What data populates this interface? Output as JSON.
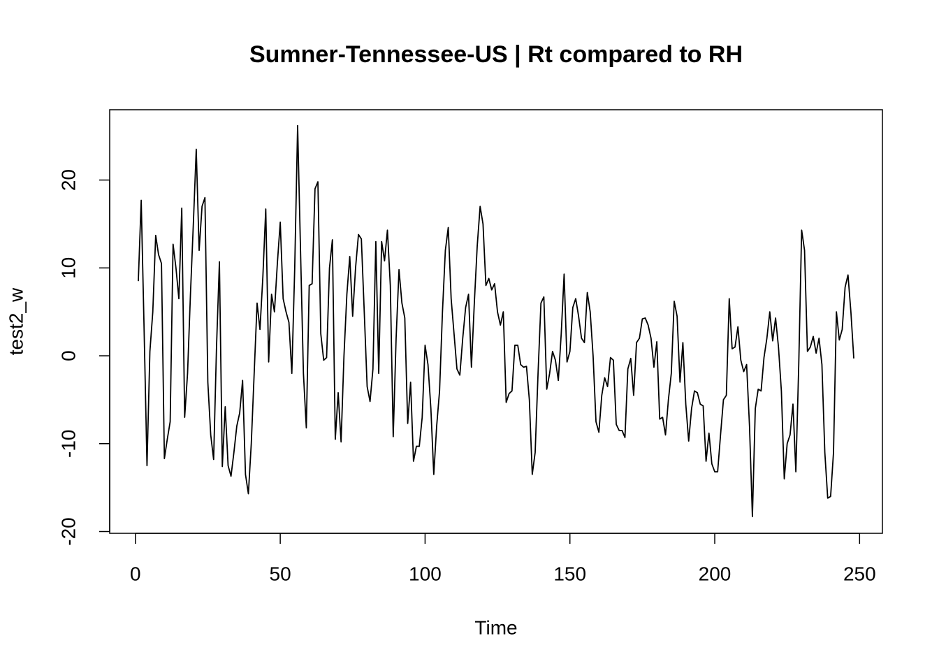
{
  "chart_data": {
    "type": "line",
    "title": "Sumner-Tennessee-US | Rt compared to RH",
    "xlabel": "Time",
    "ylabel": "test2_w",
    "xlim": [
      -8.88,
      257.88
    ],
    "ylim": [
      -20.2,
      28.0
    ],
    "xticks": [
      0,
      50,
      100,
      150,
      200,
      250
    ],
    "yticks": [
      -20,
      -10,
      0,
      10,
      20
    ],
    "x": [
      1,
      2,
      3,
      4,
      5,
      6,
      7,
      8,
      9,
      10,
      11,
      12,
      13,
      14,
      15,
      16,
      17,
      18,
      19,
      20,
      21,
      22,
      23,
      24,
      25,
      26,
      27,
      28,
      29,
      30,
      31,
      32,
      33,
      34,
      35,
      36,
      37,
      38,
      39,
      40,
      41,
      42,
      43,
      44,
      45,
      46,
      47,
      48,
      49,
      50,
      51,
      52,
      53,
      54,
      55,
      56,
      57,
      58,
      59,
      60,
      61,
      62,
      63,
      64,
      65,
      66,
      67,
      68,
      69,
      70,
      71,
      72,
      73,
      74,
      75,
      76,
      77,
      78,
      79,
      80,
      81,
      82,
      83,
      84,
      85,
      86,
      87,
      88,
      89,
      90,
      91,
      92,
      93,
      94,
      95,
      96,
      97,
      98,
      99,
      100,
      101,
      102,
      103,
      104,
      105,
      106,
      107,
      108,
      109,
      110,
      111,
      112,
      113,
      114,
      115,
      116,
      117,
      118,
      119,
      120,
      121,
      122,
      123,
      124,
      125,
      126,
      127,
      128,
      129,
      130,
      131,
      132,
      133,
      134,
      135,
      136,
      137,
      138,
      139,
      140,
      141,
      142,
      143,
      144,
      145,
      146,
      147,
      148,
      149,
      150,
      151,
      152,
      153,
      154,
      155,
      156,
      157,
      158,
      159,
      160,
      161,
      162,
      163,
      164,
      165,
      166,
      167,
      168,
      169,
      170,
      171,
      172,
      173,
      174,
      175,
      176,
      177,
      178,
      179,
      180,
      181,
      182,
      183,
      184,
      185,
      186,
      187,
      188,
      189,
      190,
      191,
      192,
      193,
      194,
      195,
      196,
      197,
      198,
      199,
      200,
      201,
      202,
      203,
      204,
      205,
      206,
      207,
      208,
      209,
      210,
      211,
      212,
      213,
      214,
      215,
      216,
      217,
      218,
      219,
      220,
      221,
      222,
      223,
      224,
      225,
      226,
      227,
      228,
      229,
      230,
      231,
      232,
      233,
      234,
      235,
      236,
      237,
      238,
      239,
      240,
      241,
      242,
      243,
      244,
      245,
      246,
      247,
      248
    ],
    "series": [
      {
        "color": "#000000",
        "values": [
          8.5,
          17.7,
          3,
          -12.5,
          0.5,
          5,
          13.7,
          11.5,
          10.5,
          -11.7,
          -9.5,
          -7.5,
          12.7,
          10,
          6.5,
          16.8,
          -7,
          -2,
          7,
          15,
          23.5,
          12,
          17,
          18,
          -3,
          -9,
          -11.8,
          1,
          10.7,
          -12.6,
          -5.8,
          -12.5,
          -13.7,
          -11,
          -8,
          -6.5,
          -2.8,
          -13.5,
          -15.7,
          -10,
          -2,
          6,
          3,
          9,
          16.7,
          -0.7,
          7,
          5,
          10.5,
          15.2,
          6.5,
          5,
          3.8,
          -2,
          10,
          26.2,
          12,
          -2,
          -8.2,
          8,
          8.2,
          19,
          19.8,
          2.5,
          -0.5,
          -0.2,
          10,
          13.2,
          -9.5,
          -4.2,
          -9.8,
          0,
          7,
          11.3,
          4.5,
          10,
          13.8,
          13.3,
          5,
          -3.5,
          -5.2,
          -1.5,
          13,
          -2,
          13,
          10.8,
          14.3,
          8,
          -9.2,
          2,
          9.8,
          6,
          4.3,
          -7.7,
          -3,
          -12,
          -10.3,
          -10.3,
          -7,
          1.2,
          -1,
          -6,
          -13.5,
          -8,
          -4,
          5,
          12,
          14.6,
          6.5,
          2.5,
          -1.5,
          -2.2,
          2,
          5.5,
          7,
          -1.3,
          6,
          12.5,
          17,
          15,
          8,
          8.8,
          7.5,
          8.2,
          5,
          3.5,
          5,
          -5.3,
          -4.3,
          -4,
          1.2,
          1.2,
          -1,
          -1.3,
          -1.2,
          -5,
          -13.5,
          -11,
          -2,
          6,
          6.7,
          -3.8,
          -2,
          0.5,
          -0.5,
          -2.8,
          2.5,
          9.3,
          -0.7,
          0.5,
          5.5,
          6.5,
          4.5,
          2,
          1.5,
          7.2,
          5,
          0,
          -7.5,
          -8.7,
          -4.5,
          -2.5,
          -3.5,
          -0.2,
          -0.5,
          -7.8,
          -8.5,
          -8.5,
          -9.3,
          -1.5,
          -0.3,
          -4.5,
          1.5,
          2,
          4.2,
          4.3,
          3.5,
          2,
          -1.3,
          1.6,
          -7.2,
          -7,
          -9,
          -5,
          -2,
          6.2,
          4.5,
          -3,
          1.5,
          -5.5,
          -9.7,
          -6,
          -4,
          -4.2,
          -5.5,
          -5.7,
          -12,
          -8.8,
          -12.3,
          -13.2,
          -13.2,
          -9,
          -5,
          -4.5,
          6.5,
          0.8,
          1,
          3.3,
          -0.5,
          -1.8,
          -1,
          -8,
          -18.3,
          -6,
          -3.8,
          -4,
          -0.2,
          2,
          5,
          1.7,
          4.3,
          1,
          -4,
          -14,
          -10,
          -9,
          -5.5,
          -13.2,
          -1,
          14.3,
          12,
          0.5,
          1,
          2.2,
          0.3,
          2,
          -1,
          -11,
          -16.2,
          -16,
          -11,
          5,
          1.8,
          3,
          7.8,
          9.2,
          5,
          -0.3
        ]
      }
    ]
  }
}
